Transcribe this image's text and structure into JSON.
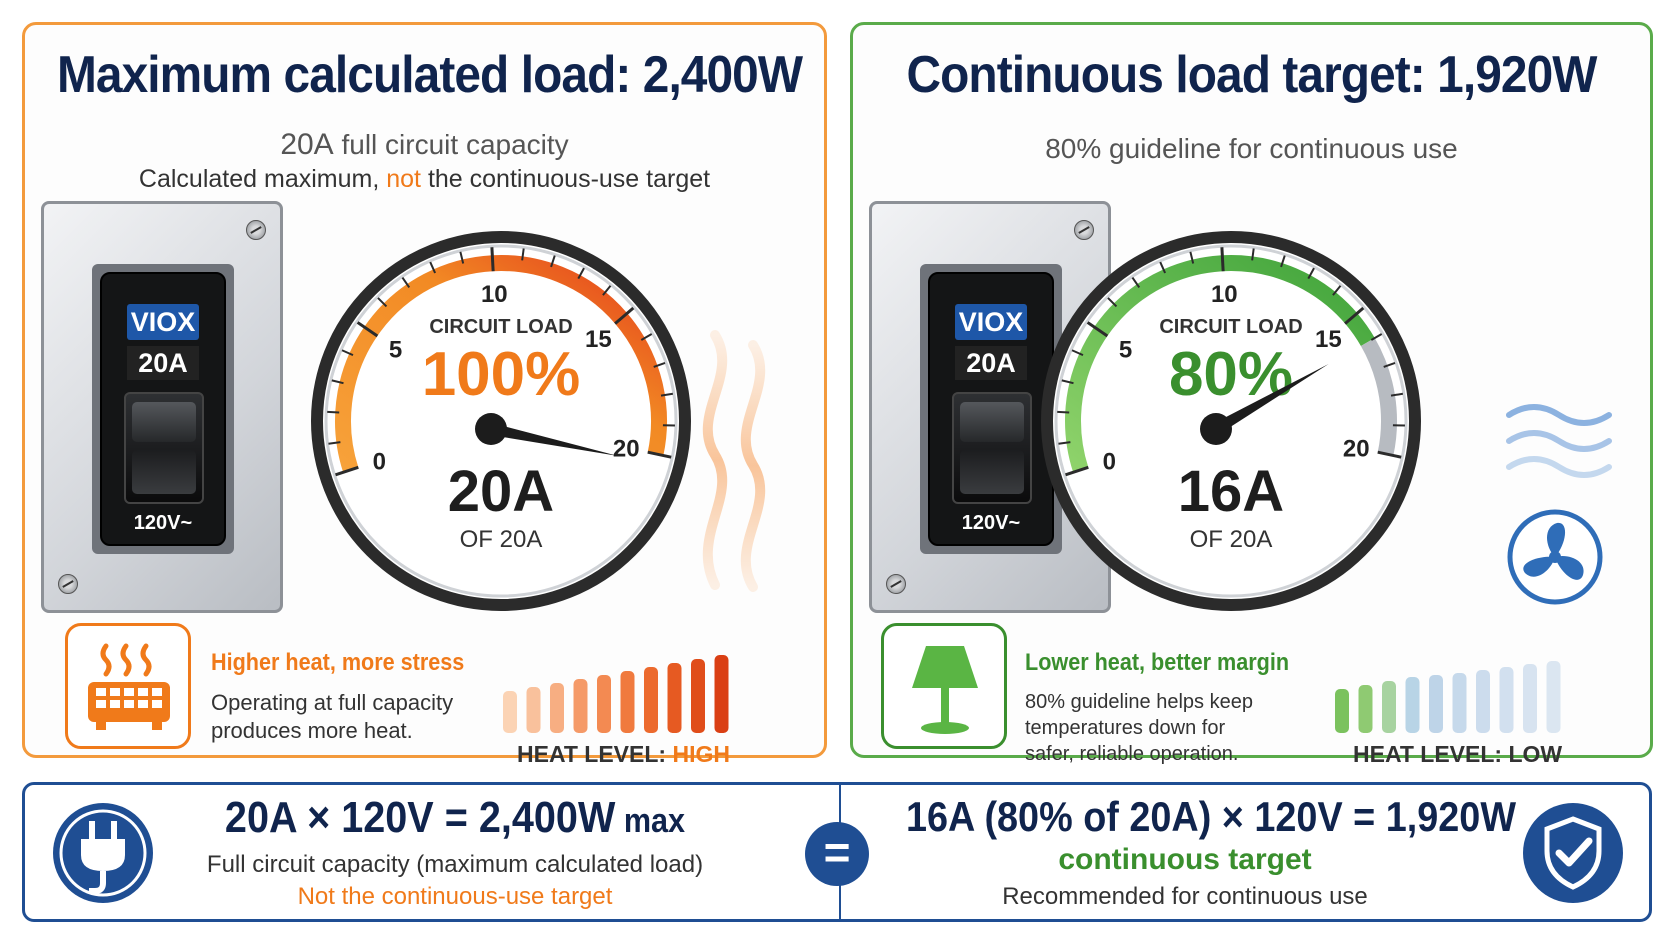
{
  "left": {
    "title": "Maximum calculated load: 2,400W",
    "subtitle_amp": "20A",
    "subtitle_rest": " full circuit capacity",
    "line2_a": "Calculated maximum, ",
    "line2_hl": "not",
    "line2_b": " the continuous-use target",
    "breaker": {
      "brand": "VIOX",
      "rating": "20A",
      "voltage": "120V~"
    },
    "gauge": {
      "label": "CIRCUIT LOAD",
      "percent": "100%",
      "percent_value": 100,
      "amps": "20A",
      "of": "OF 20A",
      "ticks": [
        "0",
        "5",
        "10",
        "15",
        "20"
      ],
      "current_amps": 20,
      "accent": "#f07a1a"
    },
    "status_title": "Higher heat, more stress",
    "status_lines": [
      "Operating at full capacity",
      "produces more heat."
    ],
    "heat_label": "HEAT LEVEL: ",
    "heat_value": "HIGH",
    "icon": "heater-icon",
    "color": "#f07a1a"
  },
  "right": {
    "title": "Continuous load target: 1,920W",
    "subtitle": "80% guideline for continuous use",
    "breaker": {
      "brand": "VIOX",
      "rating": "20A",
      "voltage": "120V~"
    },
    "gauge": {
      "label": "CIRCUIT LOAD",
      "percent": "80%",
      "percent_value": 80,
      "amps": "16A",
      "of": "OF 20A",
      "ticks": [
        "0",
        "5",
        "10",
        "15",
        "20"
      ],
      "current_amps": 16,
      "accent": "#3a8f2e"
    },
    "status_title": "Lower heat, better margin",
    "status_lines": [
      "80% guideline helps keep",
      "temperatures down for",
      "safer, reliable operation."
    ],
    "heat_label": "HEAT LEVEL: ",
    "heat_value": "LOW",
    "icon": "lamp-icon",
    "side_icon": "fan-icon",
    "color": "#3a8f2e"
  },
  "formula": {
    "left_main_a": "20A × 120V = 2,400W",
    "left_main_b": " max",
    "left_sub": "Full circuit capacity (maximum calculated load)",
    "left_note": "Not the continuous-use target",
    "equals": "=",
    "right_main": "16A (80% of 20A) × 120V = 1,920W",
    "right_target": "continuous target",
    "right_sub": "Recommended for continuous use",
    "left_icon": "plug-icon",
    "right_icon": "shield-check-icon",
    "brand_blue": "#1f4e93"
  }
}
